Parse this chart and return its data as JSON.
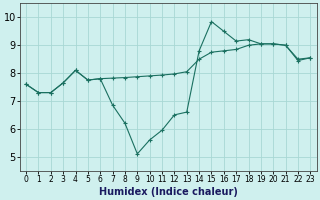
{
  "xlabel": "Humidex (Indice chaleur)",
  "bg_color": "#cff0ee",
  "grid_color": "#a8d8d4",
  "line_color": "#1a7060",
  "xlim": [
    -0.5,
    23.5
  ],
  "ylim": [
    4.5,
    10.5
  ],
  "xticks": [
    0,
    1,
    2,
    3,
    4,
    5,
    6,
    7,
    8,
    9,
    10,
    11,
    12,
    13,
    14,
    15,
    16,
    17,
    18,
    19,
    20,
    21,
    22,
    23
  ],
  "yticks": [
    5,
    6,
    7,
    8,
    9,
    10
  ],
  "line1_x": [
    0,
    1,
    2,
    3,
    4,
    5,
    6,
    7,
    8,
    9,
    10,
    11,
    12,
    13,
    14,
    15,
    16,
    17,
    18,
    19,
    20,
    21,
    22,
    23
  ],
  "line1_y": [
    7.6,
    7.3,
    7.3,
    7.65,
    8.1,
    7.75,
    7.8,
    6.85,
    6.2,
    5.1,
    5.6,
    5.95,
    6.5,
    6.6,
    8.8,
    9.85,
    9.5,
    9.15,
    9.2,
    9.05,
    9.05,
    9.0,
    8.5,
    8.55
  ],
  "line2_x": [
    0,
    1,
    2,
    3,
    4,
    5,
    6,
    7,
    8,
    9,
    10,
    11,
    12,
    13,
    14,
    15,
    16,
    17,
    18,
    19,
    20,
    21,
    22,
    23
  ],
  "line2_y": [
    7.6,
    7.3,
    7.3,
    7.65,
    8.1,
    7.75,
    7.8,
    7.82,
    7.84,
    7.87,
    7.9,
    7.93,
    7.97,
    8.05,
    8.5,
    8.75,
    8.8,
    8.85,
    9.0,
    9.05,
    9.05,
    9.0,
    8.45,
    8.55
  ]
}
